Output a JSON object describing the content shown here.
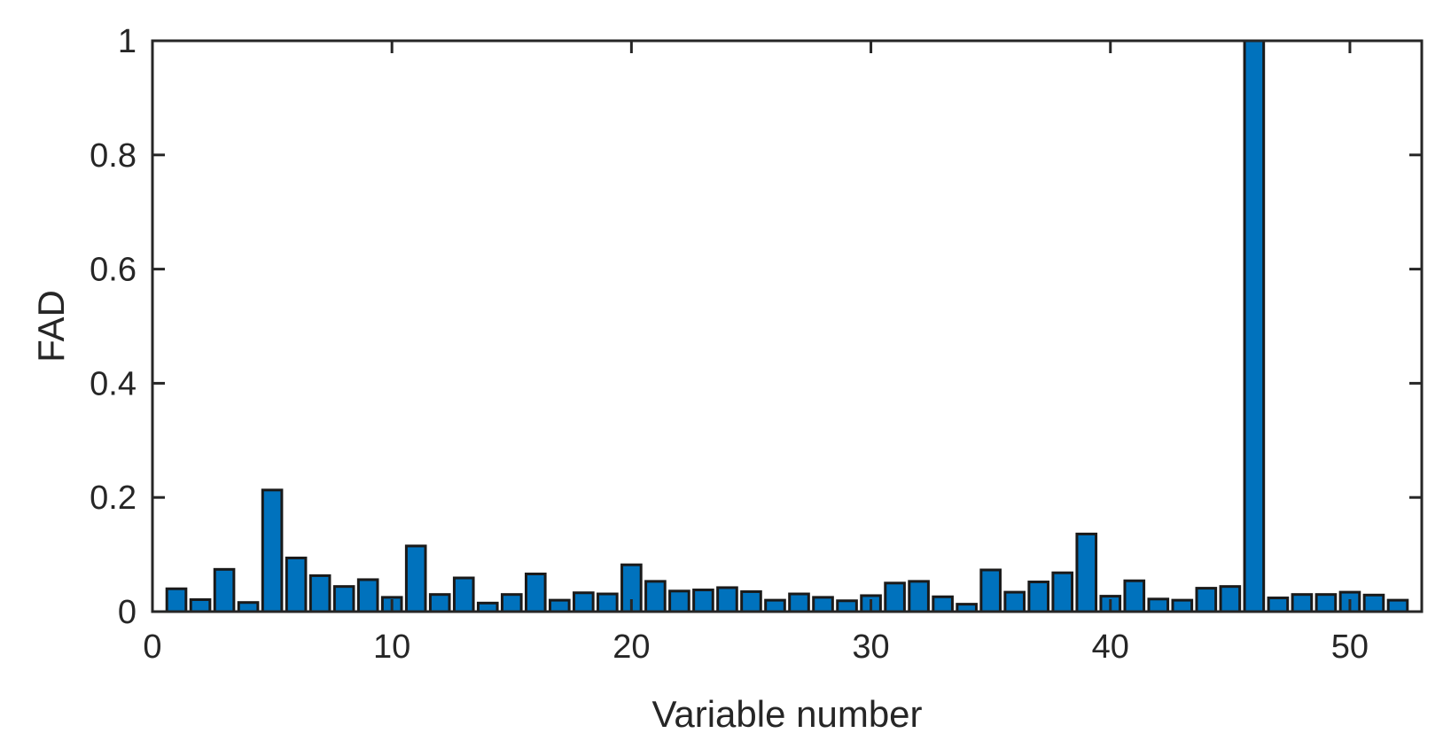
{
  "chart_data": {
    "type": "bar",
    "title": "",
    "xlabel": "Variable number",
    "ylabel": "FAD",
    "xlim": [
      0,
      53
    ],
    "ylim": [
      0,
      1
    ],
    "xticks": [
      0,
      10,
      20,
      30,
      40,
      50
    ],
    "xtick_labels": [
      "0",
      "10",
      "20",
      "30",
      "40",
      "50"
    ],
    "yticks": [
      0,
      0.2,
      0.4,
      0.6,
      0.8,
      1
    ],
    "ytick_labels": [
      "0",
      "0.2",
      "0.4",
      "0.6",
      "0.8",
      "1"
    ],
    "grid": false,
    "bar_color": "#0072BD",
    "edge_color": "#1a1a1a",
    "axis_color": "#262626",
    "x": [
      1,
      2,
      3,
      4,
      5,
      6,
      7,
      8,
      9,
      10,
      11,
      12,
      13,
      14,
      15,
      16,
      17,
      18,
      19,
      20,
      21,
      22,
      23,
      24,
      25,
      26,
      27,
      28,
      29,
      30,
      31,
      32,
      33,
      34,
      35,
      36,
      37,
      38,
      39,
      40,
      41,
      42,
      43,
      44,
      45,
      46,
      47,
      48,
      49,
      50,
      51,
      52
    ],
    "values": [
      0.04,
      0.021,
      0.074,
      0.016,
      0.213,
      0.094,
      0.063,
      0.044,
      0.056,
      0.025,
      0.115,
      0.03,
      0.059,
      0.015,
      0.03,
      0.066,
      0.02,
      0.033,
      0.031,
      0.082,
      0.053,
      0.036,
      0.038,
      0.042,
      0.035,
      0.02,
      0.031,
      0.025,
      0.019,
      0.028,
      0.05,
      0.053,
      0.026,
      0.013,
      0.073,
      0.034,
      0.052,
      0.068,
      0.136,
      0.027,
      0.054,
      0.022,
      0.02,
      0.041,
      0.044,
      1.0,
      0.024,
      0.03,
      0.03,
      0.034,
      0.029,
      0.02
    ]
  }
}
